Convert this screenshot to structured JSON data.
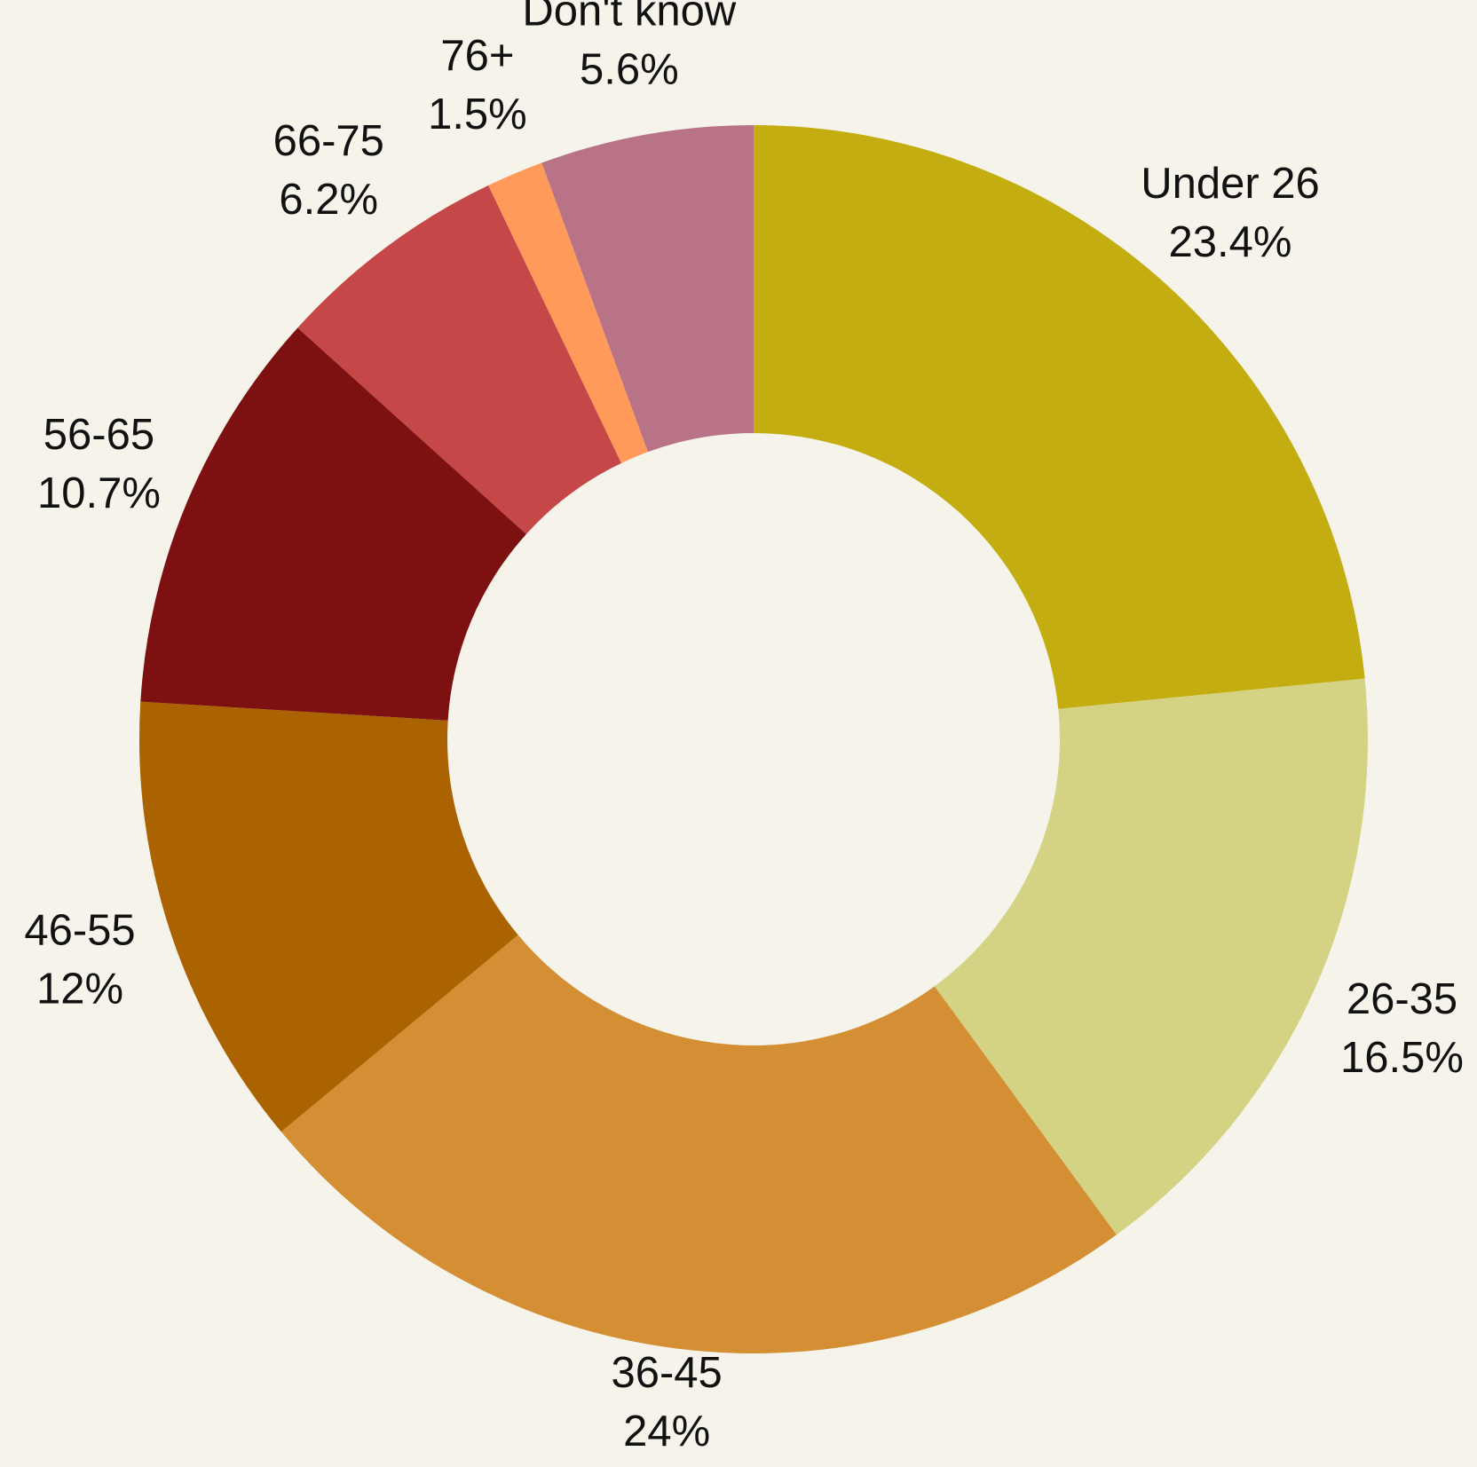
{
  "chart_data": {
    "type": "donut",
    "categories": [
      "Under 26",
      "26-35",
      "36-45",
      "46-55",
      "56-65",
      "66-75",
      "76+",
      "Don't know"
    ],
    "values": [
      23.4,
      16.5,
      24,
      12,
      10.7,
      6.2,
      1.5,
      5.6
    ],
    "value_labels": [
      "23.4%",
      "16.5%",
      "24%",
      "12%",
      "10.7%",
      "6.2%",
      "1.5%",
      "5.6%"
    ],
    "colors": [
      "#c4ad10",
      "#d4d383",
      "#d48e33",
      "#ab6200",
      "#7d1010",
      "#c64747",
      "#ff9a5a",
      "#b97386"
    ]
  }
}
